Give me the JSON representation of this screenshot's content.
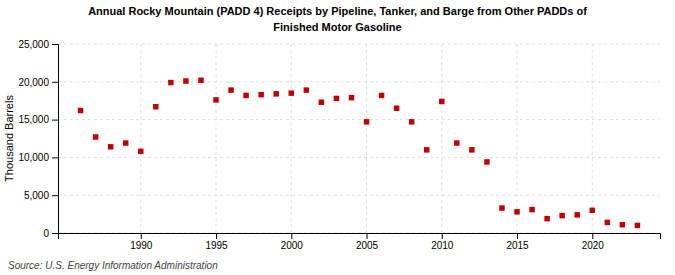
{
  "chart_data": {
    "type": "scatter",
    "title": "Annual Rocky Mountain (PADD 4) Receipts by Pipeline, Tanker, and Barge from Other PADDs of",
    "subtitle": "Finished Motor Gasoline",
    "ylabel": "Thousand Barrels",
    "source": "Source: U.S. Energy Information Administration",
    "x": [
      1986,
      1987,
      1988,
      1989,
      1990,
      1991,
      1992,
      1993,
      1994,
      1995,
      1996,
      1997,
      1998,
      1999,
      2000,
      2001,
      2002,
      2003,
      2004,
      2005,
      2006,
      2007,
      2008,
      2009,
      2010,
      2011,
      2012,
      2013,
      2014,
      2015,
      2016,
      2017,
      2018,
      2019,
      2020,
      2021,
      2022,
      2023
    ],
    "values": [
      16200,
      12700,
      11400,
      11900,
      10800,
      16700,
      19900,
      20100,
      20200,
      17600,
      18900,
      18200,
      18300,
      18400,
      18500,
      18900,
      17300,
      17800,
      17900,
      14700,
      18200,
      16500,
      14700,
      11000,
      17400,
      11900,
      11000,
      9400,
      3300,
      2800,
      3100,
      1900,
      2300,
      2400,
      3000,
      1400,
      1100,
      1000
    ],
    "color": "#c00000",
    "marker": "square",
    "xlim": [
      1984.5,
      2024.5
    ],
    "xticks": [
      1990,
      1995,
      2000,
      2005,
      2010,
      2015,
      2020
    ],
    "ylim": [
      0,
      25000
    ],
    "yticks": [
      0,
      {
        "value": 5000,
        "label": "5,000"
      },
      {
        "value": 10000,
        "label": "10,000"
      },
      {
        "value": 15000,
        "label": "15,000"
      },
      {
        "value": 20000,
        "label": "20,000"
      },
      {
        "value": 25000,
        "label": "25,000"
      }
    ],
    "grid": true
  }
}
